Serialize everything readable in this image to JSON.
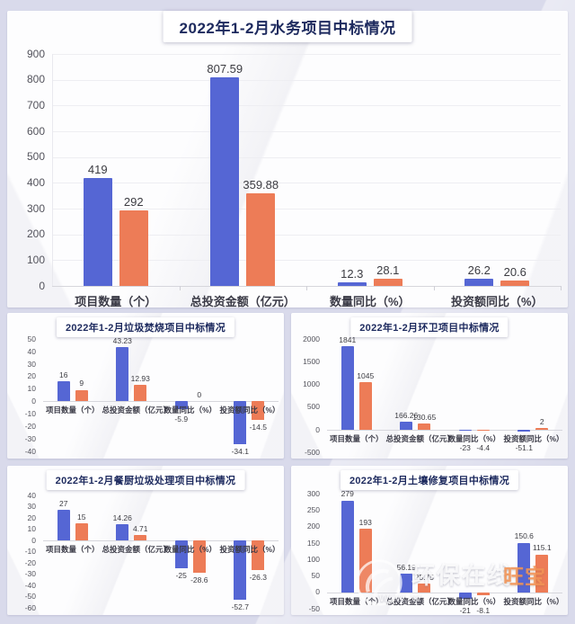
{
  "banner_title": "2022年1-2月水务项目中标情况",
  "colors": {
    "bar_blue": "#5566d4",
    "bar_orange": "#ed7c57",
    "title_navy": "#1d2a5e",
    "background_lavender": "#d9daeb"
  },
  "watermark": {
    "brand": "环保在线",
    "url_text": "www",
    "side_text": "旺宝"
  },
  "chart_data": [
    {
      "type": "bar",
      "title": "2022年1-2月水务项目中标情况",
      "categories": [
        "项目数量（个）",
        "总投资金额（亿元）",
        "数量同比（%）",
        "投资额同比（%）"
      ],
      "series": [
        {
          "name": "blue",
          "color": "#5566d4",
          "values": [
            419,
            807.59,
            12.3,
            26.2
          ]
        },
        {
          "name": "orange",
          "color": "#ed7c57",
          "values": [
            292,
            359.88,
            28.1,
            20.6
          ]
        }
      ],
      "ylim": [
        0,
        900
      ],
      "yticks": [
        900,
        800,
        700,
        600,
        500,
        400,
        300,
        200,
        100,
        0
      ],
      "grid": true,
      "legend": "none"
    },
    {
      "type": "bar",
      "title": "2022年1-2月垃圾焚烧项目中标情况",
      "categories": [
        "项目数量（个）",
        "总投资金额（亿元）",
        "数量同比（%）",
        "投资额同比（%）"
      ],
      "series": [
        {
          "name": "blue",
          "color": "#5566d4",
          "values": [
            16,
            43.23,
            -5.9,
            -34.1
          ]
        },
        {
          "name": "orange",
          "color": "#ed7c57",
          "values": [
            9,
            12.93,
            0,
            -14.5
          ]
        }
      ],
      "ylim": [
        -40,
        50
      ],
      "yticks": [
        50,
        40,
        30,
        20,
        10,
        0,
        -10,
        -20,
        -30,
        -40
      ],
      "grid": false,
      "legend": "none"
    },
    {
      "type": "bar",
      "title": "2022年1-2月环卫项目中标情况",
      "categories": [
        "项目数量（个）",
        "总投资金额（亿元）",
        "数量同比（%）",
        "投资额同比（%）"
      ],
      "series": [
        {
          "name": "blue",
          "color": "#5566d4",
          "values": [
            1841,
            166.26,
            -23,
            -51.1
          ]
        },
        {
          "name": "orange",
          "color": "#ed7c57",
          "values": [
            1045,
            130.65,
            -4.4,
            2
          ]
        }
      ],
      "ylim": [
        -500,
        2000
      ],
      "yticks": [
        2000,
        1500,
        1000,
        500,
        0,
        -500
      ],
      "grid": false,
      "legend": "none"
    },
    {
      "type": "bar",
      "title": "2022年1-2月餐厨垃圾处理项目中标情况",
      "categories": [
        "项目数量（个）",
        "总投资金额（亿元）",
        "数量同比（%）",
        "投资额同比（%）"
      ],
      "series": [
        {
          "name": "blue",
          "color": "#5566d4",
          "values": [
            27,
            14.26,
            -25,
            -52.7
          ]
        },
        {
          "name": "orange",
          "color": "#ed7c57",
          "values": [
            15,
            4.71,
            -28.6,
            -26.3
          ]
        }
      ],
      "ylim": [
        -60,
        40
      ],
      "yticks": [
        40,
        30,
        20,
        10,
        0,
        -10,
        -20,
        -30,
        -40,
        -50,
        -60
      ],
      "grid": false,
      "legend": "none"
    },
    {
      "type": "bar",
      "title": "2022年1-2月土壤修复项目中标情况",
      "categories": [
        "项目数量（个）",
        "总投资金额（亿元）",
        "数量同比（%）",
        "投资额同比（%）"
      ],
      "series": [
        {
          "name": "blue",
          "color": "#5566d4",
          "values": [
            279,
            56.19,
            -21,
            150.6
          ]
        },
        {
          "name": "orange",
          "color": "#ed7c57",
          "values": [
            193,
            25.75,
            -8.1,
            115.1
          ]
        }
      ],
      "ylim": [
        -50,
        300
      ],
      "yticks": [
        300,
        250,
        200,
        150,
        100,
        50,
        0,
        -50
      ],
      "grid": false,
      "legend": "none"
    }
  ]
}
